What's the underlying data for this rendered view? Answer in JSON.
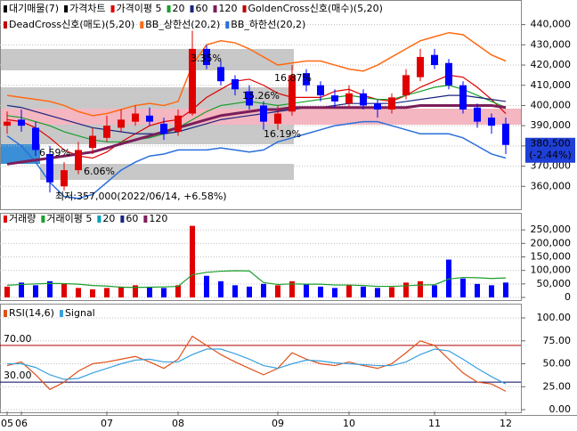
{
  "chart_data": [
    {
      "type": "candlestick",
      "legend_extra": [
        "대기매물(7)",
        "가격차트",
        "GoldenCross신호(매수)(5,20)",
        "DeadCross신호(매도)(5,20)",
        "BB_상한선(20,2)",
        "BB_하한선(20,2)"
      ],
      "open": [
        390000,
        393000,
        389000,
        376000,
        360000,
        368000,
        379000,
        384000,
        389000,
        392000,
        395000,
        391000,
        387000,
        396000,
        428000,
        419000,
        413000,
        407000,
        400000,
        391000,
        397000,
        416000,
        410000,
        405000,
        401000,
        406000,
        401000,
        398000,
        405000,
        414000,
        425000,
        421000,
        410000,
        399000,
        394000,
        391000
      ],
      "high": [
        397000,
        398000,
        392000,
        380000,
        372000,
        382000,
        389000,
        395000,
        398000,
        400000,
        399000,
        394000,
        398000,
        437000,
        430000,
        422000,
        415000,
        410000,
        402000,
        400000,
        420000,
        418000,
        412000,
        408000,
        410000,
        408000,
        403000,
        406000,
        418000,
        428000,
        428000,
        423000,
        412000,
        401000,
        396000,
        394000
      ],
      "low": [
        386000,
        387000,
        375000,
        357000,
        358000,
        366000,
        376000,
        382000,
        387000,
        390000,
        390000,
        383000,
        385000,
        395000,
        418000,
        410000,
        405000,
        398000,
        388000,
        388000,
        395000,
        407000,
        402000,
        399000,
        399000,
        398000,
        394000,
        396000,
        403000,
        412000,
        418000,
        408000,
        396000,
        389000,
        386000,
        376000
      ],
      "close": [
        392000,
        390000,
        378000,
        362000,
        368000,
        378000,
        385000,
        390000,
        393000,
        396000,
        392000,
        386000,
        395000,
        428000,
        420000,
        412000,
        408000,
        400000,
        392000,
        396000,
        415000,
        410000,
        405000,
        402000,
        406000,
        400000,
        398000,
        404000,
        415000,
        424000,
        420000,
        410000,
        398000,
        392000,
        390000,
        380500
      ],
      "up_color": "#e00000",
      "down_color": "#0000ff",
      "series": [
        {
          "name": "가격이평 5",
          "color": "#e00000",
          "values": [
            393000,
            392000,
            389000,
            384000,
            378000,
            375000,
            374000,
            377000,
            382000,
            386000,
            390000,
            392000,
            393000,
            398000,
            404000,
            408000,
            412000,
            413000,
            410000,
            406000,
            404000,
            404000,
            404000,
            407000,
            408000,
            405000,
            403000,
            402000,
            405000,
            409000,
            412000,
            415000,
            414000,
            409000,
            403000,
            396000
          ]
        },
        {
          "name": "20",
          "color": "#1a9e2a",
          "values": [
            395000,
            394000,
            392000,
            390000,
            387000,
            385000,
            383000,
            382000,
            382000,
            383000,
            384000,
            386000,
            389000,
            393000,
            397000,
            400000,
            401000,
            402000,
            401000,
            400000,
            401000,
            402000,
            403000,
            404000,
            405000,
            404000,
            403000,
            403000,
            405000,
            407000,
            409000,
            410000,
            408000,
            405000,
            402000,
            399000
          ]
        },
        {
          "name": "60",
          "color": "#1a237e",
          "values": [
            400000,
            399000,
            397000,
            395000,
            393000,
            391000,
            389000,
            388000,
            387000,
            386000,
            386000,
            386000,
            387000,
            389000,
            391000,
            393000,
            394000,
            395000,
            396000,
            397000,
            398000,
            399000,
            399000,
            400000,
            401000,
            401000,
            401000,
            401000,
            402000,
            403000,
            404000,
            405000,
            405000,
            404000,
            403000,
            402000
          ]
        },
        {
          "name": "120",
          "color": "#7b1e5a",
          "values": [
            371000,
            372000,
            373000,
            374000,
            375000,
            376000,
            377000,
            379000,
            381000,
            383000,
            385000,
            387000,
            389000,
            391000,
            393000,
            395000,
            396000,
            397000,
            398000,
            398000,
            399000,
            399000,
            399000,
            399000,
            399000,
            399000,
            399000,
            399000,
            399000,
            400000,
            400000,
            400000,
            400000,
            400000,
            400000,
            399000
          ]
        }
      ],
      "bands": [
        {
          "color": "#ff6a13",
          "values": [
            405000,
            404000,
            403000,
            402000,
            400000,
            397000,
            395000,
            396000,
            398000,
            400000,
            401000,
            400000,
            402000,
            420000,
            430000,
            432000,
            431000,
            428000,
            424000,
            420000,
            421000,
            422000,
            422000,
            420000,
            418000,
            417000,
            420000,
            424000,
            428000,
            432000,
            434000,
            436000,
            435000,
            430000,
            425000,
            422000
          ]
        },
        {
          "color": "#2a6fdb",
          "values": [
            385000,
            380000,
            372000,
            362000,
            355000,
            354000,
            356000,
            362000,
            368000,
            372000,
            375000,
            376000,
            378000,
            378000,
            378000,
            379000,
            378000,
            377000,
            378000,
            382000,
            384000,
            386000,
            388000,
            390000,
            391000,
            392000,
            392000,
            390000,
            388000,
            386000,
            386000,
            386000,
            384000,
            380000,
            376000,
            374000
          ]
        }
      ],
      "annotations": [
        "3.35%",
        "16.87%",
        "15.26%",
        "16.19%",
        "6.59%",
        "6.06%",
        "최저:357,000(2022/06/14, +6.58%)"
      ],
      "last_label": "380,500",
      "change_label": "(-2.44%)",
      "ylim": [
        350000,
        446000
      ],
      "yticks": [
        {
          "value": 360000,
          "label": "360,000"
        },
        {
          "value": 370000,
          "label": "370,000"
        },
        {
          "value": 380000,
          "label": "380,000"
        },
        {
          "value": 390000,
          "label": "390,000"
        },
        {
          "value": 400000,
          "label": "400,000"
        },
        {
          "value": 410000,
          "label": "410,000"
        },
        {
          "value": 420000,
          "label": "420,000"
        },
        {
          "value": 430000,
          "label": "430,000"
        },
        {
          "value": 440000,
          "label": "440,000"
        }
      ],
      "grid": true
    },
    {
      "type": "bar",
      "series": [
        {
          "name": "거래량",
          "color": "#e00000",
          "values": [
            40000,
            55000,
            45000,
            60000,
            50000,
            35000,
            30000,
            35000,
            40000,
            45000,
            38000,
            35000,
            45000,
            265000,
            80000,
            60000,
            45000,
            40000,
            50000,
            45000,
            60000,
            50000,
            40000,
            35000,
            45000,
            40000,
            35000,
            38000,
            55000,
            60000,
            45000,
            140000,
            70000,
            50000,
            45000,
            55000
          ]
        },
        {
          "name": "거래이평 5",
          "color": "#1a9e2a",
          "values": [
            45000,
            48000,
            50000,
            52000,
            51000,
            49000,
            44000,
            42000,
            38000,
            37000,
            38000,
            39000,
            41000,
            84000,
            93000,
            97000,
            99000,
            98000,
            55000,
            48000,
            50000,
            49000,
            49000,
            46000,
            46000,
            44000,
            41000,
            41000,
            43000,
            46000,
            47000,
            68000,
            74000,
            73000,
            70000,
            72000
          ]
        }
      ],
      "legend_extra": [
        {
          "name": "20",
          "color": "#00a0c0"
        },
        {
          "name": "60",
          "color": "#1a237e"
        },
        {
          "name": "120",
          "color": "#7b1e5a"
        }
      ],
      "ylim": [
        0,
        300000
      ],
      "yticks": [
        0,
        {
          "value": 50000,
          "label": "50,000"
        },
        {
          "value": 100000,
          "label": "100,000"
        },
        {
          "value": 150000,
          "label": "150,000"
        },
        {
          "value": 200000,
          "label": "200,000"
        },
        {
          "value": 250000,
          "label": "250,000"
        }
      ],
      "grid": true
    },
    {
      "type": "line",
      "categories": [
        "05",
        "06",
        null,
        null,
        null,
        null,
        null,
        "07",
        null,
        null,
        null,
        null,
        "08",
        null,
        null,
        null,
        null,
        null,
        null,
        "09",
        null,
        null,
        null,
        null,
        "10",
        null,
        null,
        null,
        null,
        null,
        "11",
        null,
        null,
        null,
        null,
        "12"
      ],
      "series": [
        {
          "name": "RSI(14,6)",
          "color": "#e0501a",
          "values": [
            48,
            52,
            38,
            22,
            30,
            42,
            50,
            52,
            55,
            58,
            52,
            45,
            55,
            80,
            70,
            60,
            52,
            45,
            38,
            45,
            62,
            55,
            50,
            48,
            52,
            48,
            45,
            50,
            62,
            75,
            70,
            55,
            40,
            30,
            28,
            20
          ]
        },
        {
          "name": "Signal",
          "color": "#3aa0e0",
          "values": [
            50,
            50,
            46,
            38,
            33,
            34,
            40,
            45,
            50,
            54,
            55,
            52,
            52,
            60,
            66,
            66,
            61,
            55,
            48,
            45,
            50,
            54,
            53,
            51,
            50,
            49,
            48,
            48,
            52,
            60,
            66,
            64,
            55,
            45,
            36,
            28
          ]
        }
      ],
      "ref_lines": [
        {
          "value": 70,
          "label": "70.00"
        },
        {
          "value": 30,
          "label": "30.00"
        }
      ],
      "ylim": [
        0,
        100
      ],
      "yticks": [
        {
          "value": 0,
          "label": "0.00"
        },
        {
          "value": 25,
          "label": "25.00"
        },
        {
          "value": 50,
          "label": "50.00"
        },
        {
          "value": 75,
          "label": "75.00"
        },
        {
          "value": 100,
          "label": "100.00"
        }
      ],
      "grid": true
    }
  ]
}
